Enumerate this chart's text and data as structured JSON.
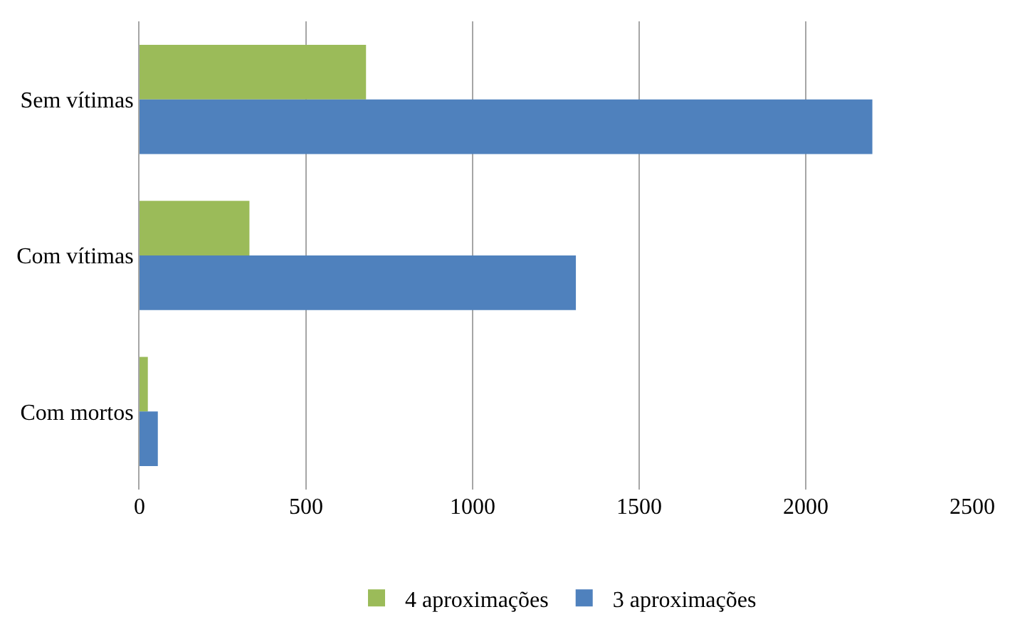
{
  "chart_data": {
    "type": "bar",
    "orientation": "horizontal",
    "categories": [
      "Sem vítimas",
      "Com vítimas",
      "Com mortos"
    ],
    "series": [
      {
        "name": "4 aproximações",
        "color": "#9bbb59",
        "values": [
          680,
          330,
          25
        ]
      },
      {
        "name": "3 aproximações",
        "color": "#4f81bd",
        "values": [
          2200,
          1310,
          55
        ]
      }
    ],
    "xlim": [
      0,
      2500
    ],
    "xticks": [
      0,
      500,
      1000,
      1500,
      2000,
      2500
    ],
    "grid": "x",
    "legend": "bottom"
  }
}
